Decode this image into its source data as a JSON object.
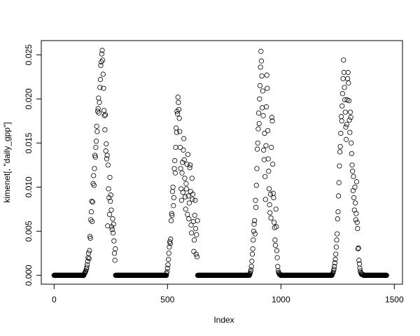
{
  "chart_data": {
    "type": "scatter",
    "title": "",
    "xlabel": "Index",
    "ylabel": "kimenet[, \"daily_gpp\"]",
    "xlim": [
      0,
      1500
    ],
    "ylim": [
      0,
      0.025
    ],
    "x_ticks": [
      "0",
      "500",
      "1000",
      "1500"
    ],
    "y_ticks": [
      "0.000",
      "0.005",
      "0.010",
      "0.015",
      "0.020",
      "0.025"
    ],
    "grid": false,
    "marker": "open-circle",
    "color": "#000000",
    "zero_runs": [
      [
        0,
        131
      ],
      [
        271,
        495
      ],
      [
        633,
        861
      ],
      [
        999,
        1225
      ],
      [
        1364,
        1466
      ]
    ],
    "humps": [
      {
        "start": 132,
        "step": 2,
        "values": [
          0.0001,
          0.0002,
          0.0003,
          0.0004,
          0.0005,
          0.0007,
          0.0009,
          0.0012,
          0.0016,
          0.002,
          0.0025,
          0.0019,
          0.0028,
          0.0044,
          0.0042,
          0.0063,
          0.0072,
          0.0084,
          0.0061,
          0.0083,
          0.0104,
          0.0113,
          0.0102,
          0.0121,
          0.0136,
          0.0134,
          0.0145,
          0.0152,
          0.0169,
          0.0163,
          0.0186,
          0.0189,
          0.0201,
          0.0184,
          0.0196,
          0.0213,
          0.0222,
          0.0238,
          0.0242,
          0.0251,
          0.0255,
          0.0244,
          0.0228,
          0.0212,
          0.0187,
          0.0181,
          0.0165,
          0.0182,
          0.0141,
          0.0149,
          0.0132,
          0.0136,
          0.0056,
          0.0125,
          0.0098,
          0.0088,
          0.0069,
          0.0111,
          0.0084,
          0.0091,
          0.0074,
          0.0055,
          0.0052,
          0.0064,
          0.0048,
          0.0058,
          0.0039,
          0.0025,
          0.0017,
          0.003
        ]
      },
      {
        "start": 496,
        "step": 2,
        "values": [
          0.0002,
          0.0004,
          0.0008,
          0.0012,
          0.0018,
          0.0025,
          0.0032,
          0.0038,
          0.0036,
          0.0041,
          0.0062,
          0.007,
          0.0068,
          0.0095,
          0.01,
          0.0079,
          0.0088,
          0.0121,
          0.013,
          0.0116,
          0.0145,
          0.0167,
          0.0162,
          0.0186,
          0.0183,
          0.0202,
          0.0196,
          0.0188,
          0.0178,
          0.0163,
          0.0145,
          0.0121,
          0.0098,
          0.0085,
          0.0116,
          0.0128,
          0.0094,
          0.0142,
          0.0155,
          0.0131,
          0.011,
          0.0089,
          0.0075,
          0.0104,
          0.0098,
          0.0126,
          0.0069,
          0.0137,
          0.009,
          0.0064,
          0.0082,
          0.0122,
          0.0125,
          0.0095,
          0.0057,
          0.0048,
          0.011,
          0.0086,
          0.0092,
          0.0061,
          0.0027,
          0.004,
          0.0068,
          0.0085,
          0.0053,
          0.0024,
          0.0046,
          0.0021,
          0.0062
        ]
      },
      {
        "start": 862,
        "step": 2,
        "values": [
          0.0001,
          0.0002,
          0.0004,
          0.0006,
          0.001,
          0.0016,
          0.0024,
          0.003,
          0.004,
          0.005,
          0.0058,
          0.0062,
          0.0047,
          0.0085,
          0.0077,
          0.0102,
          0.0121,
          0.0143,
          0.015,
          0.0166,
          0.0184,
          0.0172,
          0.02,
          0.0215,
          0.0236,
          0.0254,
          0.0243,
          0.0226,
          0.019,
          0.0209,
          0.0181,
          0.0142,
          0.0131,
          0.0161,
          0.0112,
          0.0086,
          0.0147,
          0.0191,
          0.0227,
          0.0212,
          0.0164,
          0.0132,
          0.0118,
          0.0098,
          0.008,
          0.0071,
          0.0092,
          0.0065,
          0.0145,
          0.0179,
          0.0175,
          0.0126,
          0.0093,
          0.0088,
          0.006,
          0.0054,
          0.004,
          0.0034,
          0.0075,
          0.0055,
          0.0028,
          0.002,
          0.001,
          0.0005,
          0.0003,
          0.0002,
          0.0001,
          0.0001,
          0.0001
        ]
      },
      {
        "start": 1226,
        "step": 2,
        "values": [
          0.0001,
          0.0002,
          0.0003,
          0.0005,
          0.0007,
          0.001,
          0.0014,
          0.0018,
          0.0024,
          0.0032,
          0.004,
          0.0047,
          0.0064,
          0.0072,
          0.009,
          0.0105,
          0.0124,
          0.014,
          0.0146,
          0.0161,
          0.018,
          0.0175,
          0.0192,
          0.0206,
          0.0223,
          0.0244,
          0.023,
          0.0213,
          0.0199,
          0.0185,
          0.0168,
          0.0154,
          0.0171,
          0.0199,
          0.0223,
          0.023,
          0.0218,
          0.0198,
          0.0176,
          0.0162,
          0.0185,
          0.0179,
          0.015,
          0.0138,
          0.0125,
          0.0118,
          0.0096,
          0.0112,
          0.0088,
          0.0074,
          0.01,
          0.0082,
          0.0063,
          0.007,
          0.0106,
          0.006,
          0.0053,
          0.003,
          0.0031,
          0.0017,
          0.0013,
          0.0008,
          0.0005,
          0.0003,
          0.0002,
          0.0001,
          0.0001,
          0.0001,
          0.0001
        ]
      }
    ]
  }
}
